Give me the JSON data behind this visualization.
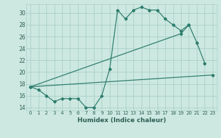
{
  "xlabel": "Humidex (Indice chaleur)",
  "bg_color": "#cce8e0",
  "line_color": "#2e7d6e",
  "grid_color": "#aacfc8",
  "xlim": [
    -0.5,
    23.5
  ],
  "ylim": [
    13.5,
    31.5
  ],
  "yticks": [
    14,
    16,
    18,
    20,
    22,
    24,
    26,
    28,
    30
  ],
  "xticks": [
    0,
    1,
    2,
    3,
    4,
    5,
    6,
    7,
    8,
    9,
    10,
    11,
    12,
    13,
    14,
    15,
    16,
    17,
    18,
    19,
    20,
    21,
    22,
    23
  ],
  "series": [
    {
      "x": [
        0,
        1,
        2,
        3,
        4,
        5,
        6,
        7,
        8,
        9,
        10,
        11,
        12,
        13,
        14,
        15,
        16,
        17,
        18,
        19,
        20,
        21,
        22
      ],
      "y": [
        17.5,
        17.0,
        16.0,
        15.0,
        15.5,
        15.5,
        15.5,
        14.0,
        14.0,
        16.0,
        20.5,
        30.5,
        29.0,
        30.5,
        31.0,
        30.5,
        30.5,
        29.0,
        28.0,
        27.0,
        28.0,
        25.0,
        21.5
      ]
    },
    {
      "x": [
        0,
        19,
        20
      ],
      "y": [
        17.5,
        26.5,
        28.0
      ]
    },
    {
      "x": [
        0,
        23
      ],
      "y": [
        17.5,
        19.5
      ]
    }
  ],
  "xlabel_fontsize": 6.5,
  "xlabel_color": "#2e5e55",
  "tick_fontsize": 5.0,
  "ytick_fontsize": 5.5,
  "marker": "D",
  "markersize": 2.0,
  "linewidth": 0.9
}
